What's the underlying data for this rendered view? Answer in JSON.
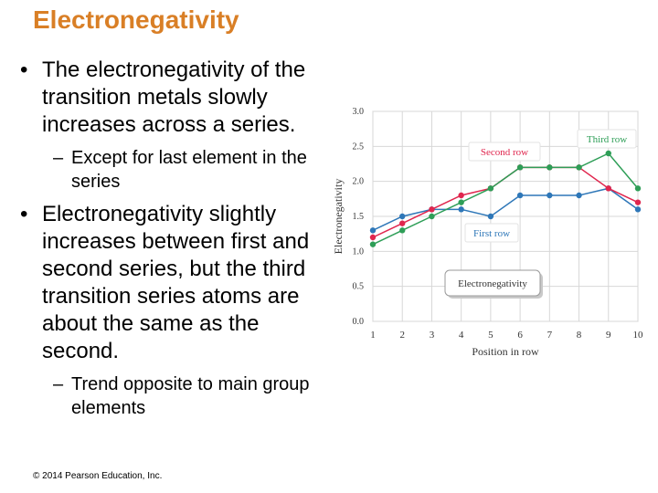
{
  "slide": {
    "title": "Electronegativity",
    "bullet_1": "The electronegativity of the transition metals slowly increases across a series.",
    "sub_1": "Except for last element in the series",
    "bullet_2": "Electronegativity slightly increases between first and second series, but the third transition series atoms are about the same as the second.",
    "sub_2": "Trend opposite to main group elements",
    "copyright": "© 2014 Pearson Education, Inc.",
    "bullet_glyph": "•",
    "dash_glyph": "–"
  },
  "chart_data": {
    "type": "line",
    "xlabel": "Position in row",
    "ylabel": "Electronegativity",
    "x": [
      1,
      2,
      3,
      4,
      5,
      6,
      7,
      8,
      9,
      10
    ],
    "ylim": [
      0.0,
      3.0
    ],
    "yticks": [
      "0.0",
      "0.5",
      "1.0",
      "1.5",
      "2.0",
      "2.5",
      "3.0"
    ],
    "grid": true,
    "series": [
      {
        "name": "First row",
        "color": "#2E77B8",
        "values": [
          1.3,
          1.5,
          1.6,
          1.6,
          1.5,
          1.8,
          1.8,
          1.8,
          1.9,
          1.6
        ]
      },
      {
        "name": "Second row",
        "color": "#E0264E",
        "values": [
          1.2,
          1.4,
          1.6,
          1.8,
          1.9,
          2.2,
          2.2,
          2.2,
          1.9,
          1.7
        ]
      },
      {
        "name": "Third row",
        "color": "#2E9E57",
        "values": [
          1.1,
          1.3,
          1.5,
          1.7,
          1.9,
          2.2,
          2.2,
          2.2,
          2.4,
          1.9
        ]
      }
    ],
    "legend_note": "Electronegativity"
  }
}
